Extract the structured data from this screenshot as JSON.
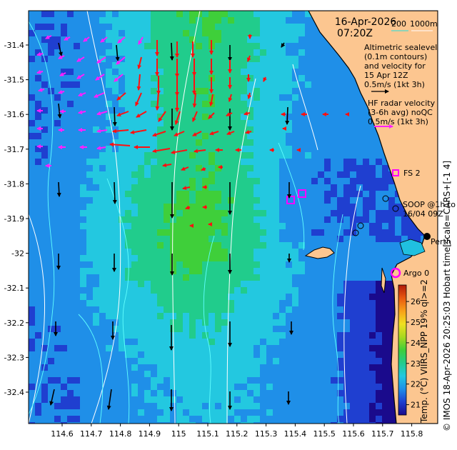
{
  "title": {
    "date": "16-Apr-2026",
    "time": "07:20Z"
  },
  "depth_legend": {
    "contour_200": "200",
    "contour_1000": "1000m"
  },
  "altimetry_note": {
    "lines": [
      "Altimetric sealevel",
      "(0.1m contours)",
      "and velocity for",
      "15 Apr 12Z",
      "0.5m/s (1kt 3h)"
    ]
  },
  "radar_note": {
    "lines": [
      "HF radar velocity",
      "(3-6h avg) noQC",
      "0.5m/s (1kt 3h)"
    ]
  },
  "labels": {
    "fs2": "FS 2",
    "soop": [
      "SOOP @1h to",
      "16/04 09Z"
    ],
    "perth": "Perth",
    "argo": "Argo 0"
  },
  "side_text": "© IMOS 18-Apr-2026 20:25:03 Hobart time[scale=CARS+[-1 4]",
  "colorbar": {
    "label": "Temp. (°C) VIIRS_NPP 19% ql>=2",
    "ticks": [
      21,
      22,
      23,
      24,
      25,
      26
    ],
    "range": [
      20.5,
      26.8
    ],
    "colors": [
      "#1a0a8c",
      "#1f3fd0",
      "#1f8fe8",
      "#23c8e0",
      "#21cc8c",
      "#3fcf3a",
      "#a8d820",
      "#f0e020",
      "#f8a018",
      "#e85810",
      "#b01a08"
    ]
  },
  "axes": {
    "x_ticks": [
      "114.6",
      "114.7",
      "114.8",
      "114.9",
      "115",
      "115.1",
      "115.2",
      "115.3",
      "115.4",
      "115.5",
      "115.6",
      "115.7",
      "115.8"
    ],
    "y_ticks": [
      "-31.4",
      "-31.5",
      "-31.6",
      "-31.7",
      "-31.8",
      "-31.9",
      "-32",
      "-32.1",
      "-32.2",
      "-32.3",
      "-32.4"
    ]
  },
  "colors": {
    "land": "#fcc690",
    "altimetry_arrow": "#000000",
    "radar_arrow": "#ff1010",
    "radar_arrow_alt": "#ff20ff",
    "marker": "#ff00ff"
  }
}
